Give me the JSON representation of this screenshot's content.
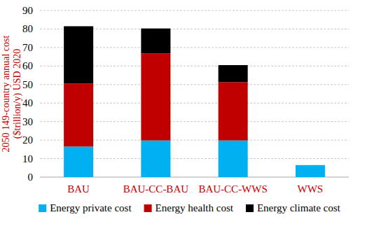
{
  "chart_data": {
    "type": "bar",
    "stacked": true,
    "grid": true,
    "legend": "bottom",
    "ylabel": "2050 149-country annual cost ($trillion/y) USD 2020",
    "categories": [
      "BAU",
      "BAU-CC-BAU",
      "BAU-CC-WWS",
      "WWS"
    ],
    "series": [
      {
        "name": "Energy private cost",
        "color": "#00b0f0",
        "values": [
          16.5,
          19.8,
          19.8,
          6.5
        ]
      },
      {
        "name": "Energy health cost",
        "color": "#c00000",
        "values": [
          34,
          47,
          31.5,
          0
        ]
      },
      {
        "name": "Energy climate cost",
        "color": "#000000",
        "values": [
          31,
          13.5,
          9.2,
          0
        ]
      }
    ],
    "ylim": [
      0,
      90
    ],
    "yticks": [
      0,
      10,
      20,
      30,
      40,
      50,
      60,
      70,
      80,
      90
    ]
  }
}
